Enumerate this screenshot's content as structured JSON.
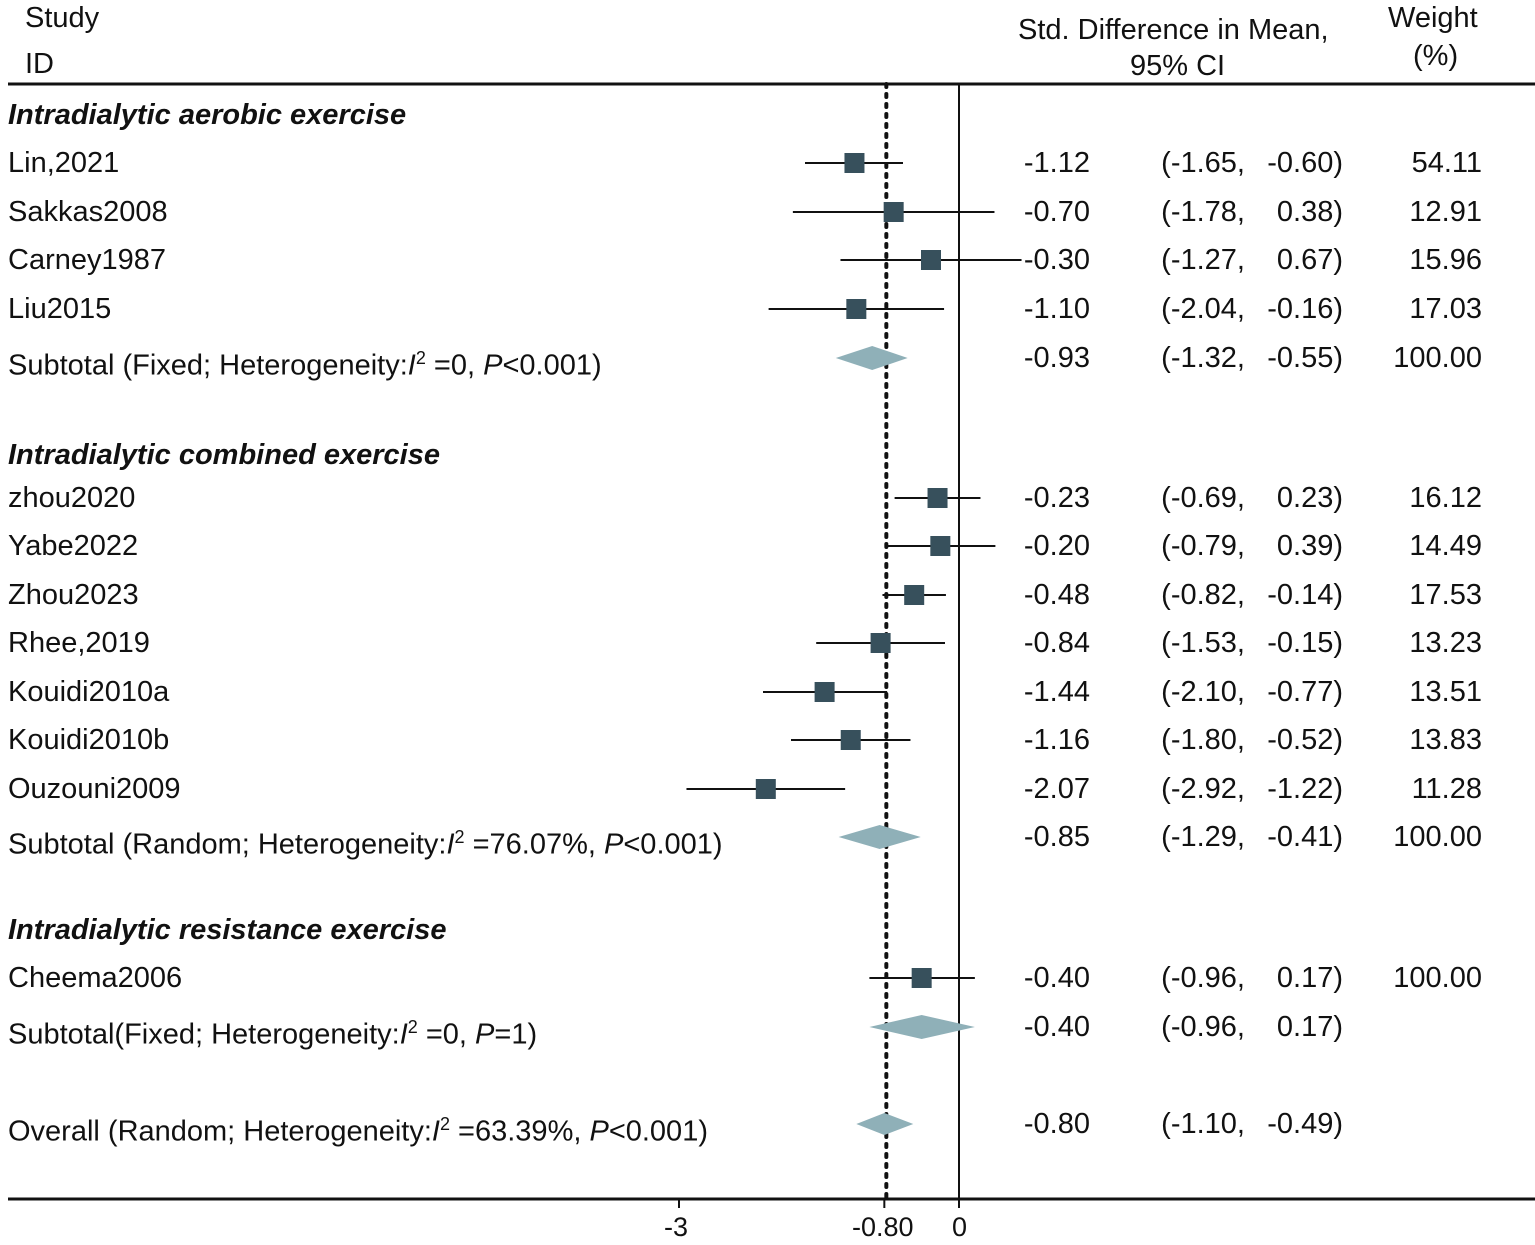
{
  "chart_data": {
    "type": "forest",
    "header": {
      "study_line1": "Study",
      "study_line2": "ID",
      "effect_line1": "Std. Difference in Mean,",
      "effect_line2": "95% CI",
      "weight_line1": "Weight",
      "weight_line2": "(%)"
    },
    "xlim": [
      -3.0,
      0.0
    ],
    "reference_line": -0.8,
    "null_line": 0,
    "x_tick_labels": [
      "-3",
      "-0.80",
      "0"
    ],
    "rows": [
      {
        "kind": "group",
        "label": "Intradialytic aerobic exercise"
      },
      {
        "kind": "study",
        "label": "Lin,2021",
        "est": -1.12,
        "lo": -1.65,
        "hi": -0.6,
        "est_text": "-1.12",
        "ci_lo_text": "(-1.65,",
        "ci_hi_text": "-0.60)",
        "weight": "54.11"
      },
      {
        "kind": "study",
        "label": "Sakkas2008",
        "est": -0.7,
        "lo": -1.78,
        "hi": 0.38,
        "est_text": "-0.70",
        "ci_lo_text": "(-1.78,",
        "ci_hi_text": "0.38)",
        "weight": "12.91"
      },
      {
        "kind": "study",
        "label": "Carney1987",
        "est": -0.3,
        "lo": -1.27,
        "hi": 0.67,
        "est_text": "-0.30",
        "ci_lo_text": "(-1.27,",
        "ci_hi_text": "0.67)",
        "weight": "15.96"
      },
      {
        "kind": "study",
        "label": "Liu2015",
        "est": -1.1,
        "lo": -2.04,
        "hi": -0.16,
        "est_text": "-1.10",
        "ci_lo_text": "(-2.04,",
        "ci_hi_text": "-0.16)",
        "weight": "17.03"
      },
      {
        "kind": "subtotal",
        "pre": "Subtotal (Fixed; Heterogeneity:",
        "i2": "I",
        "sup": "2",
        "mid": " =0, ",
        "p": "P",
        "post": "<0.001)",
        "est": -0.93,
        "lo": -1.32,
        "hi": -0.55,
        "est_text": "-0.93",
        "ci_lo_text": "(-1.32,",
        "ci_hi_text": "-0.55)",
        "weight": "100.00"
      },
      {
        "kind": "group",
        "label": "Intradialytic combined exercise"
      },
      {
        "kind": "study",
        "label": "zhou2020",
        "est": -0.23,
        "lo": -0.69,
        "hi": 0.23,
        "est_text": "-0.23",
        "ci_lo_text": "(-0.69,",
        "ci_hi_text": "0.23)",
        "weight": "16.12"
      },
      {
        "kind": "study",
        "label": "Yabe2022",
        "est": -0.2,
        "lo": -0.79,
        "hi": 0.39,
        "est_text": "-0.20",
        "ci_lo_text": "(-0.79,",
        "ci_hi_text": "0.39)",
        "weight": "14.49"
      },
      {
        "kind": "study",
        "label": "Zhou2023",
        "est": -0.48,
        "lo": -0.82,
        "hi": -0.14,
        "est_text": "-0.48",
        "ci_lo_text": "(-0.82,",
        "ci_hi_text": "-0.14)",
        "weight": "17.53"
      },
      {
        "kind": "study",
        "label": "Rhee,2019",
        "est": -0.84,
        "lo": -1.53,
        "hi": -0.15,
        "est_text": "-0.84",
        "ci_lo_text": "(-1.53,",
        "ci_hi_text": "-0.15)",
        "weight": "13.23"
      },
      {
        "kind": "study",
        "label": "Kouidi2010a",
        "est": -1.44,
        "lo": -2.1,
        "hi": -0.77,
        "est_text": "-1.44",
        "ci_lo_text": "(-2.10,",
        "ci_hi_text": "-0.77)",
        "weight": "13.51"
      },
      {
        "kind": "study",
        "label": "Kouidi2010b",
        "est": -1.16,
        "lo": -1.8,
        "hi": -0.52,
        "est_text": "-1.16",
        "ci_lo_text": "(-1.80,",
        "ci_hi_text": "-0.52)",
        "weight": "13.83"
      },
      {
        "kind": "study",
        "label": "Ouzouni2009",
        "est": -2.07,
        "lo": -2.92,
        "hi": -1.22,
        "est_text": "-2.07",
        "ci_lo_text": "(-2.92,",
        "ci_hi_text": "-1.22)",
        "weight": "11.28"
      },
      {
        "kind": "subtotal",
        "pre": "Subtotal (Random; Heterogeneity:",
        "i2": "I",
        "sup": "2",
        "mid": " =76.07%, ",
        "p": "P",
        "post": "<0.001)",
        "est": -0.85,
        "lo": -1.29,
        "hi": -0.41,
        "est_text": "-0.85",
        "ci_lo_text": "(-1.29,",
        "ci_hi_text": "-0.41)",
        "weight": "100.00"
      },
      {
        "kind": "group",
        "label": "Intradialytic resistance exercise"
      },
      {
        "kind": "study",
        "label": "Cheema2006",
        "est": -0.4,
        "lo": -0.96,
        "hi": 0.17,
        "est_text": "-0.40",
        "ci_lo_text": "(-0.96,",
        "ci_hi_text": "0.17)",
        "weight": "100.00"
      },
      {
        "kind": "subtotal",
        "pre": "Subtotal(Fixed; Heterogeneity:",
        "i2": "I",
        "sup": "2",
        "mid": " =0, ",
        "p": "P",
        "post": "=1)",
        "est": -0.4,
        "lo": -0.96,
        "hi": 0.17,
        "est_text": "-0.40",
        "ci_lo_text": "(-0.96,",
        "ci_hi_text": "0.17)",
        "weight": ""
      },
      {
        "kind": "overall",
        "pre": "Overall (Random; Heterogeneity:",
        "i2": "I",
        "sup": "2",
        "mid": " =63.39%, ",
        "p": "P",
        "post": "<0.001)",
        "est": -0.8,
        "lo": -1.1,
        "hi": -0.49,
        "est_text": "-0.80",
        "ci_lo_text": "(-1.10,",
        "ci_hi_text": "-0.49)",
        "weight": ""
      }
    ],
    "colors": {
      "square": "#37505c",
      "diamond": "#8fb0b8",
      "line": "#111111"
    }
  }
}
